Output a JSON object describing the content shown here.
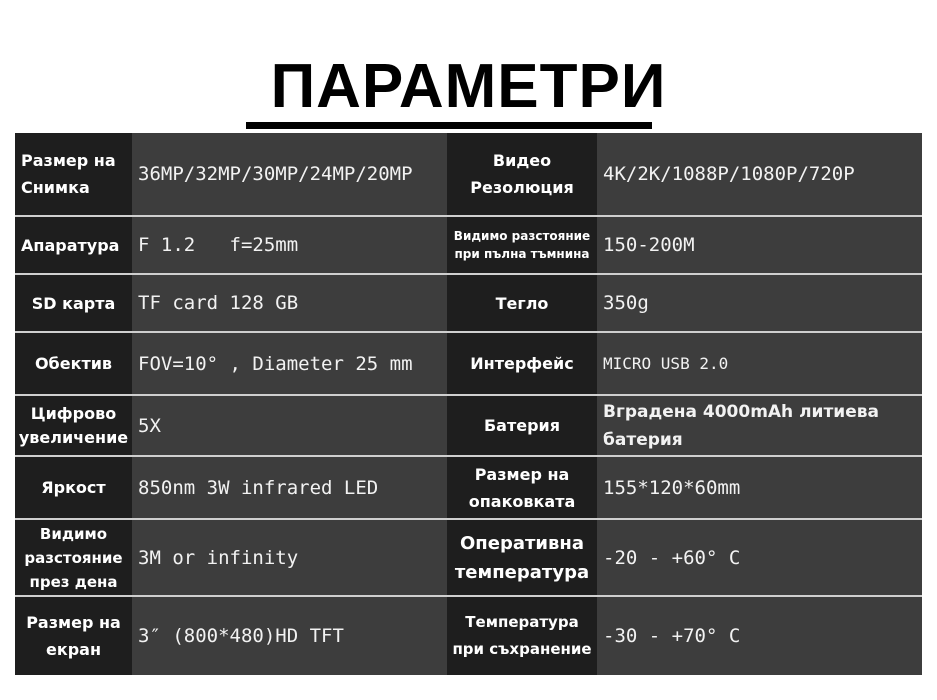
{
  "title": "ПАРАМЕТРИ",
  "rows": [
    {
      "l1": "Размер на Снимка",
      "v1": "36MP/32MP/30MP/24MP/20MP",
      "l2": "Видео Резолюция",
      "v2": "4K/2K/1088P/1080P/720P"
    },
    {
      "l1": "Апаратура",
      "v1": "F 1.2   f=25mm",
      "l2": "Видимо разстояние при пълна тъмнина",
      "v2": "150-200M"
    },
    {
      "l1": "SD карта",
      "v1": "TF card 128 GB",
      "l2": "Тегло",
      "v2": "350g"
    },
    {
      "l1": "Обектив",
      "v1": "FOV=10° , Diameter 25 mm",
      "l2": "Интерфейс",
      "v2": "MICRO USB 2.0"
    },
    {
      "l1": "Цифрово увеличение",
      "v1": "5X",
      "l2": "Батерия",
      "v2": "Вградена 4000mAh литиева батерия"
    },
    {
      "l1": "Яркост",
      "v1": "850nm 3W infrared LED",
      "l2": "Размер на опаковката",
      "v2": "155*120*60mm"
    },
    {
      "l1": "Видимо разстояние през дена",
      "v1": "3M or infinity",
      "l2": "Оперативна температура",
      "v2": "-20 - +60° C"
    },
    {
      "l1": "Размер на екран",
      "v1": "3″ (800*480)HD TFT",
      "l2": "Температура при съхранение",
      "v2": "-30 - +70° C"
    }
  ]
}
